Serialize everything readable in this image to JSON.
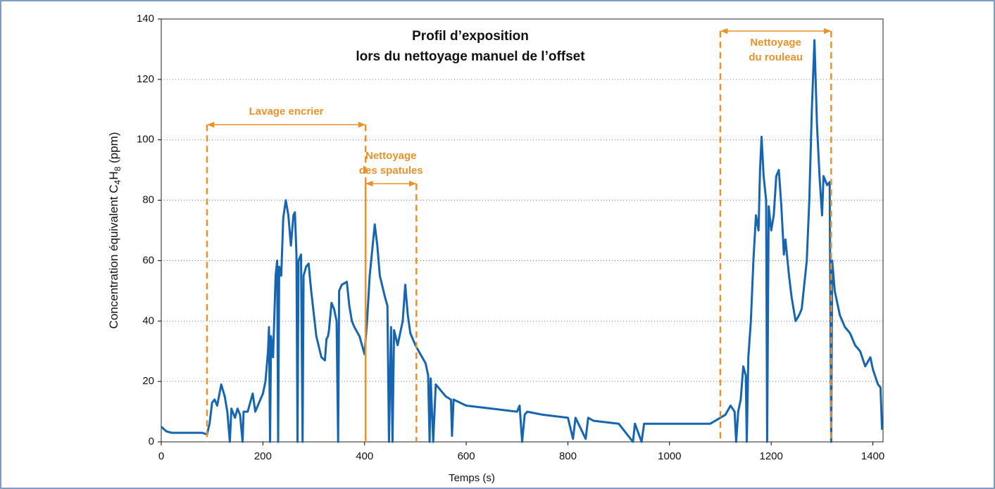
{
  "chart_data": {
    "type": "line",
    "title": [
      "Profil d’exposition",
      "lors du nettoyage manuel de l’offset"
    ],
    "xlabel": "Temps (s)",
    "ylabel": [
      "Concentration équivalent C",
      "4",
      "H",
      "8",
      " (ppm)"
    ],
    "xlim": [
      0,
      1420
    ],
    "xticks": [
      0,
      200,
      400,
      600,
      800,
      1000,
      1200,
      1400
    ],
    "ylim": [
      0,
      140
    ],
    "yticks": [
      0,
      20,
      40,
      60,
      80,
      100,
      120,
      140
    ],
    "grid": true,
    "x": [
      0,
      10,
      20,
      50,
      80,
      90,
      95,
      100,
      105,
      110,
      118,
      125,
      130,
      135,
      138,
      145,
      150,
      155,
      160,
      162,
      170,
      180,
      185,
      190,
      200,
      205,
      210,
      212,
      214,
      216,
      220,
      225,
      228,
      230,
      232,
      236,
      240,
      245,
      250,
      255,
      260,
      263,
      266,
      268,
      270,
      275,
      278,
      280,
      285,
      290,
      295,
      305,
      315,
      322,
      325,
      328,
      330,
      335,
      340,
      345,
      348,
      350,
      355,
      365,
      370,
      375,
      380,
      390,
      400,
      405,
      410,
      420,
      425,
      430,
      440,
      445,
      448,
      452,
      455,
      458,
      465,
      475,
      480,
      485,
      490,
      500,
      510,
      520,
      525,
      528,
      530,
      535,
      540,
      550,
      560,
      570,
      572,
      575,
      600,
      650,
      700,
      705,
      710,
      715,
      720,
      750,
      800,
      810,
      815,
      835,
      840,
      850,
      900,
      928,
      932,
      945,
      950,
      1000,
      1050,
      1080,
      1100,
      1110,
      1120,
      1128,
      1131,
      1135,
      1140,
      1145,
      1150,
      1152,
      1155,
      1160,
      1165,
      1170,
      1175,
      1178,
      1181,
      1185,
      1190,
      1192,
      1195,
      1200,
      1205,
      1210,
      1215,
      1220,
      1225,
      1228,
      1235,
      1240,
      1248,
      1255,
      1260,
      1265,
      1270,
      1275,
      1280,
      1285,
      1290,
      1295,
      1300,
      1303,
      1310,
      1315,
      1318,
      1320,
      1325,
      1335,
      1345,
      1355,
      1365,
      1375,
      1385,
      1395,
      1400,
      1410,
      1415,
      1418
    ],
    "series": [
      {
        "color": "#1565b0",
        "values": [
          5,
          3.5,
          3,
          3,
          3,
          2.5,
          6,
          13,
          14,
          12,
          19,
          15,
          10,
          0,
          11,
          8,
          11,
          9,
          0,
          10,
          10,
          16,
          10,
          12,
          16,
          20,
          30,
          38,
          0,
          35,
          28,
          55,
          60,
          0,
          58,
          55,
          74,
          80,
          75,
          65,
          75,
          76,
          62,
          0,
          60,
          62,
          0,
          55,
          58,
          59,
          50,
          35,
          28,
          27,
          34,
          35,
          37,
          46,
          44,
          40,
          0,
          50,
          52,
          53,
          45,
          40,
          38,
          35,
          29,
          40,
          55,
          72,
          65,
          55,
          48,
          45,
          0,
          38,
          0,
          37,
          32,
          40,
          52,
          42,
          36,
          32,
          29,
          26,
          22,
          0,
          21,
          0,
          19,
          17,
          15,
          14,
          2,
          14,
          12,
          11,
          10,
          12,
          0,
          9,
          10,
          9,
          8,
          1,
          8,
          1,
          8,
          7,
          6,
          0,
          6,
          0,
          6,
          6,
          6,
          6,
          8,
          9,
          12,
          10,
          0,
          10,
          14,
          25,
          22,
          0,
          28,
          40,
          60,
          75,
          70,
          90,
          101,
          88,
          80,
          0,
          78,
          70,
          75,
          88,
          90,
          78,
          62,
          67,
          55,
          48,
          40,
          42,
          44,
          52,
          60,
          80,
          110,
          133,
          105,
          88,
          75,
          88,
          85,
          86,
          0,
          60,
          50,
          42,
          38,
          36,
          32,
          30,
          25,
          28,
          24,
          19,
          18,
          4
        ]
      }
    ],
    "annotations": [
      {
        "lines": [
          "Lavage encrier"
        ],
        "x0": 90,
        "x1": 402,
        "y": 105
      },
      {
        "lines": [
          "Nettoyage",
          "des spatules"
        ],
        "x0": 402,
        "x1": 502,
        "y": 85.5
      },
      {
        "lines": [
          "Nettoyage",
          "du rouleau"
        ],
        "x0": 1100,
        "x1": 1318,
        "y": 136
      }
    ],
    "annotation_color": "#e8922a"
  }
}
